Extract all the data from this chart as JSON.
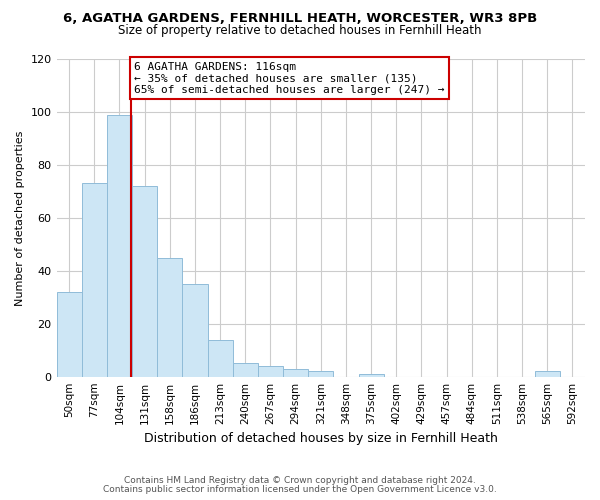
{
  "title": "6, AGATHA GARDENS, FERNHILL HEATH, WORCESTER, WR3 8PB",
  "subtitle": "Size of property relative to detached houses in Fernhill Heath",
  "xlabel": "Distribution of detached houses by size in Fernhill Heath",
  "ylabel": "Number of detached properties",
  "bar_labels": [
    "50sqm",
    "77sqm",
    "104sqm",
    "131sqm",
    "158sqm",
    "186sqm",
    "213sqm",
    "240sqm",
    "267sqm",
    "294sqm",
    "321sqm",
    "348sqm",
    "375sqm",
    "402sqm",
    "429sqm",
    "457sqm",
    "484sqm",
    "511sqm",
    "538sqm",
    "565sqm",
    "592sqm"
  ],
  "bar_heights": [
    32,
    73,
    99,
    72,
    45,
    35,
    14,
    5,
    4,
    3,
    2,
    0,
    1,
    0,
    0,
    0,
    0,
    0,
    0,
    2,
    0
  ],
  "bar_color": "#cde6f5",
  "bar_edge_color": "#90bcd8",
  "vline_index": 2.4,
  "vline_color": "#cc0000",
  "annotation_text": "6 AGATHA GARDENS: 116sqm\n← 35% of detached houses are smaller (135)\n65% of semi-detached houses are larger (247) →",
  "annotation_box_color": "#ffffff",
  "annotation_box_edge": "#cc0000",
  "ylim": [
    0,
    120
  ],
  "yticks": [
    0,
    20,
    40,
    60,
    80,
    100,
    120
  ],
  "footnote1": "Contains HM Land Registry data © Crown copyright and database right 2024.",
  "footnote2": "Contains public sector information licensed under the Open Government Licence v3.0.",
  "bg_color": "#ffffff",
  "grid_color": "#cccccc",
  "title_fontsize": 9.5,
  "subtitle_fontsize": 8.5,
  "xlabel_fontsize": 9,
  "ylabel_fontsize": 8,
  "tick_fontsize": 7.5,
  "annot_fontsize": 8,
  "footnote_fontsize": 6.5
}
